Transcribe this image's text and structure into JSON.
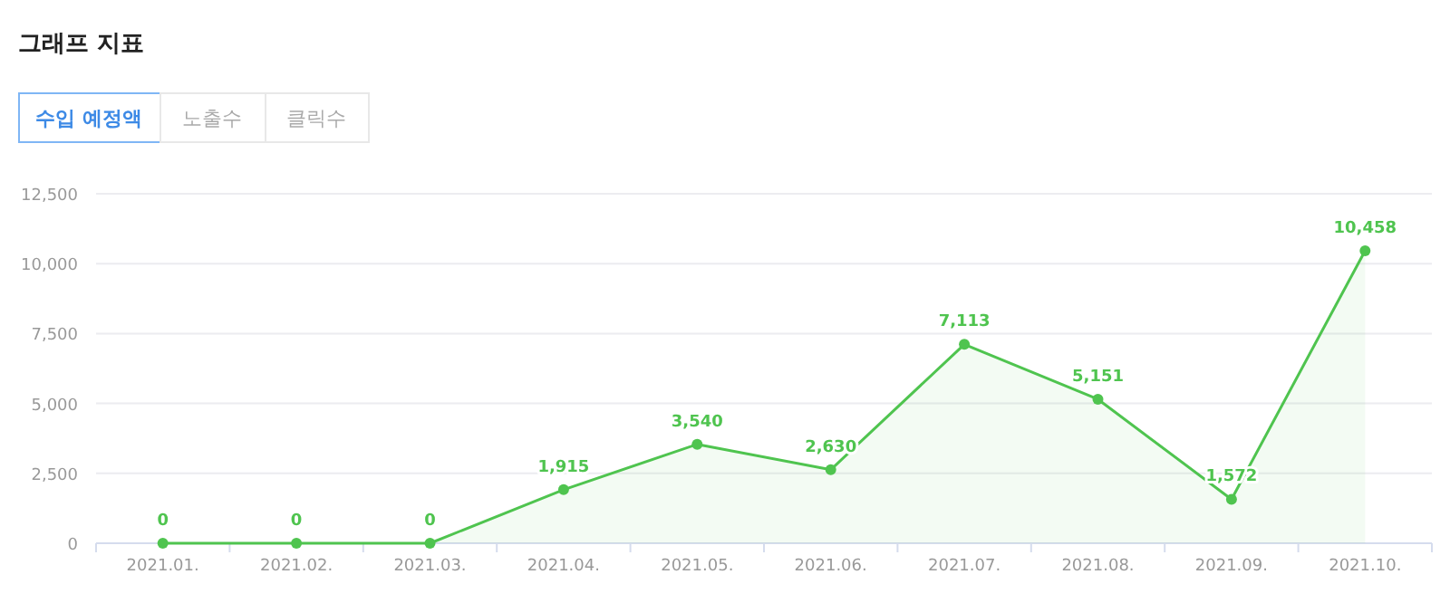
{
  "chart_data": {
    "type": "area",
    "title": "그래프 지표",
    "annotations": [
      "수입 예정액",
      "노출수",
      "클릭수"
    ],
    "categories": [
      "2021.01.",
      "2021.02.",
      "2021.03.",
      "2021.04.",
      "2021.05.",
      "2021.06.",
      "2021.07.",
      "2021.08.",
      "2021.09.",
      "2021.10."
    ],
    "series": [
      {
        "color": "#4fc44f",
        "values": [
          0,
          0,
          0,
          1915,
          3540,
          2630,
          7113,
          5151,
          1572,
          10458
        ],
        "value_labels": [
          "0",
          "0",
          "0",
          "1,915",
          "3,540",
          "2,630",
          "7,113",
          "5,151",
          "1,572",
          "10,458"
        ]
      }
    ],
    "ylim": [
      0,
      12500
    ],
    "yticks": [
      0,
      {
        "value": 2500,
        "label": "2,500"
      },
      {
        "value": 5000,
        "label": "5,000"
      },
      {
        "value": 7500,
        "label": "7,500"
      },
      {
        "value": 10000,
        "label": "10,000"
      },
      {
        "value": 12500,
        "label": "12,500"
      }
    ],
    "grid": "y",
    "marker": "circle",
    "line_style": "solid"
  }
}
